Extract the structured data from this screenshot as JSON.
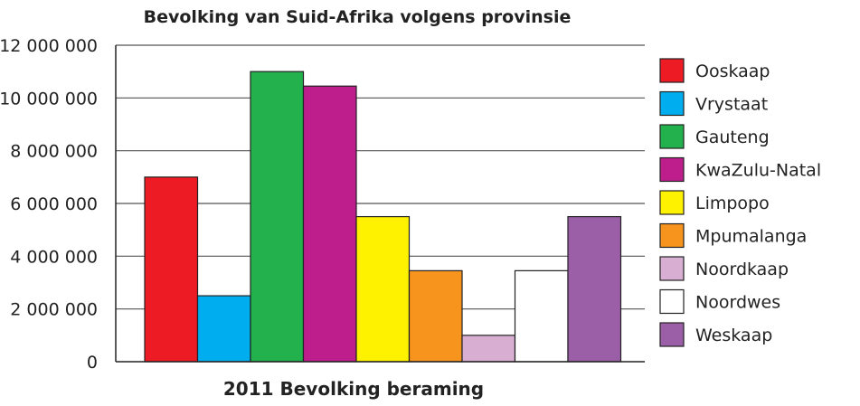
{
  "chart_data": {
    "type": "bar",
    "title": "Bevolking van Suid-Afrika volgens provinsie",
    "xlabel": "2011 Bevolking beraming",
    "ylabel": "",
    "ylim": [
      0,
      12000000
    ],
    "yticks": [
      0,
      2000000,
      4000000,
      6000000,
      8000000,
      10000000,
      12000000
    ],
    "ytick_labels": [
      "0",
      "2 000 000",
      "4 000 000",
      "6 000 000",
      "8 000 000",
      "10 000 000",
      "12 000 000"
    ],
    "grid": true,
    "legend_position": "right",
    "categories": [
      "Ooskaap",
      "Vrystaat",
      "Gauteng",
      "KwaZulu-Natal",
      "Limpopo",
      "Mpumalanga",
      "Noordkaap",
      "Noordwes",
      "Weskaap"
    ],
    "values": [
      7000000,
      2500000,
      11000000,
      10450000,
      5500000,
      3450000,
      1000000,
      3450000,
      5500000
    ],
    "colors": [
      "#ed1c24",
      "#00aeef",
      "#22b14c",
      "#be1e8c",
      "#fff200",
      "#f7941d",
      "#d8aed3",
      "#ffffff",
      "#9b5fa8"
    ]
  }
}
